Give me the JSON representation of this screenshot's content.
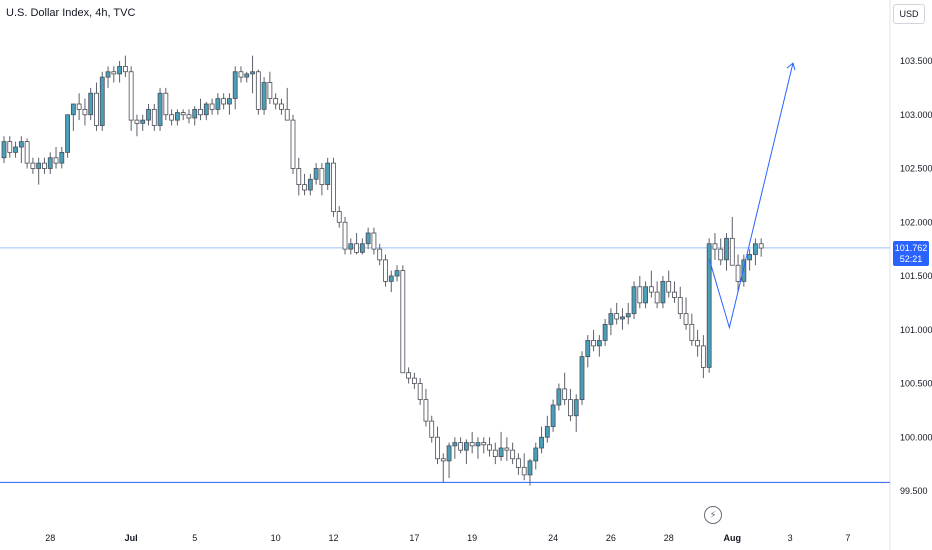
{
  "header": {
    "title": "U.S. Dollar Index, 4h, TVC"
  },
  "currency_button": {
    "label": "USD"
  },
  "price_label": {
    "price": "101.762",
    "countdown": "52:21"
  },
  "colors": {
    "up": "#26a69a",
    "up_fill": "#4a9fb8",
    "down_fill": "#ffffff",
    "wick": "#5d606b",
    "line": "#2962ff",
    "hline": "#9ec1f5"
  },
  "chart_data": {
    "type": "candlestick",
    "title": "U.S. Dollar Index, 4h, TVC",
    "ylim": [
      99.5,
      103.8
    ],
    "y_ticks": [
      "103.500",
      "103.000",
      "102.500",
      "102.000",
      "101.500",
      "101.000",
      "100.500",
      "100.000",
      "99.500"
    ],
    "y_tick_values": [
      103.5,
      103.0,
      102.5,
      102.0,
      101.5,
      101.0,
      100.5,
      100.0,
      99.5
    ],
    "x_ticks": [
      {
        "label": "28",
        "i": 8
      },
      {
        "label": "Jul",
        "i": 22,
        "bold": true
      },
      {
        "label": "5",
        "i": 33
      },
      {
        "label": "10",
        "i": 47
      },
      {
        "label": "12",
        "i": 57
      },
      {
        "label": "17",
        "i": 71
      },
      {
        "label": "19",
        "i": 81
      },
      {
        "label": "24",
        "i": 95
      },
      {
        "label": "26",
        "i": 105
      },
      {
        "label": "28",
        "i": 115
      },
      {
        "label": "Aug",
        "i": 126,
        "bold": true
      },
      {
        "label": "3",
        "i": 136
      },
      {
        "label": "7",
        "i": 146
      }
    ],
    "horizontal_lines": [
      101.762,
      99.58
    ],
    "projection": [
      [
        122,
        101.66
      ],
      [
        125.5,
        101.02
      ],
      [
        136.5,
        103.48
      ]
    ],
    "candles": [
      [
        102.6,
        102.8,
        102.55,
        102.75
      ],
      [
        102.75,
        102.8,
        102.6,
        102.65
      ],
      [
        102.65,
        102.75,
        102.6,
        102.7
      ],
      [
        102.7,
        102.8,
        102.55,
        102.75
      ],
      [
        102.75,
        102.78,
        102.5,
        102.55
      ],
      [
        102.55,
        102.6,
        102.45,
        102.5
      ],
      [
        102.5,
        102.6,
        102.35,
        102.55
      ],
      [
        102.55,
        102.6,
        102.45,
        102.5
      ],
      [
        102.5,
        102.65,
        102.45,
        102.6
      ],
      [
        102.6,
        102.7,
        102.5,
        102.55
      ],
      [
        102.55,
        102.7,
        102.5,
        102.65
      ],
      [
        102.65,
        103.0,
        102.6,
        103.0
      ],
      [
        103.0,
        103.1,
        102.85,
        103.1
      ],
      [
        103.1,
        103.2,
        102.95,
        103.05
      ],
      [
        103.05,
        103.15,
        102.9,
        103.0
      ],
      [
        103.0,
        103.25,
        102.95,
        103.2
      ],
      [
        103.2,
        103.3,
        102.85,
        102.9
      ],
      [
        102.9,
        103.4,
        102.85,
        103.35
      ],
      [
        103.35,
        103.45,
        103.25,
        103.4
      ],
      [
        103.4,
        103.45,
        103.3,
        103.38
      ],
      [
        103.38,
        103.5,
        103.3,
        103.45
      ],
      [
        103.45,
        103.55,
        103.35,
        103.4
      ],
      [
        103.4,
        103.45,
        102.85,
        102.95
      ],
      [
        102.95,
        103.0,
        102.8,
        102.92
      ],
      [
        102.92,
        103.0,
        102.85,
        102.95
      ],
      [
        102.95,
        103.1,
        102.9,
        103.05
      ],
      [
        103.05,
        103.1,
        102.85,
        102.9
      ],
      [
        102.9,
        103.25,
        102.85,
        103.2
      ],
      [
        103.2,
        103.25,
        102.95,
        103.0
      ],
      [
        103.0,
        103.05,
        102.9,
        102.95
      ],
      [
        102.95,
        103.05,
        102.9,
        103.02
      ],
      [
        103.02,
        103.05,
        102.95,
        103.0
      ],
      [
        103.0,
        103.05,
        102.92,
        102.97
      ],
      [
        102.97,
        103.08,
        102.9,
        103.05
      ],
      [
        103.05,
        103.15,
        102.95,
        103.0
      ],
      [
        103.0,
        103.12,
        102.95,
        103.1
      ],
      [
        103.1,
        103.15,
        103.0,
        103.05
      ],
      [
        103.05,
        103.2,
        103.0,
        103.15
      ],
      [
        103.15,
        103.2,
        103.05,
        103.1
      ],
      [
        103.1,
        103.2,
        103.0,
        103.15
      ],
      [
        103.15,
        103.45,
        103.05,
        103.4
      ],
      [
        103.4,
        103.45,
        103.3,
        103.35
      ],
      [
        103.35,
        103.4,
        103.3,
        103.38
      ],
      [
        103.38,
        103.55,
        103.2,
        103.4
      ],
      [
        103.4,
        103.42,
        103.0,
        103.05
      ],
      [
        103.05,
        103.35,
        103.0,
        103.3
      ],
      [
        103.3,
        103.4,
        103.1,
        103.15
      ],
      [
        103.15,
        103.2,
        103.05,
        103.1
      ],
      [
        103.1,
        103.15,
        103.0,
        103.05
      ],
      [
        103.05,
        103.25,
        102.95,
        102.95
      ],
      [
        102.95,
        103.0,
        102.45,
        102.5
      ],
      [
        102.5,
        102.6,
        102.25,
        102.35
      ],
      [
        102.35,
        102.45,
        102.25,
        102.3
      ],
      [
        102.3,
        102.45,
        102.25,
        102.4
      ],
      [
        102.4,
        102.55,
        102.35,
        102.5
      ],
      [
        102.5,
        102.55,
        102.25,
        102.35
      ],
      [
        102.35,
        102.6,
        102.3,
        102.55
      ],
      [
        102.55,
        102.6,
        102.05,
        102.1
      ],
      [
        102.1,
        102.15,
        101.95,
        102.0
      ],
      [
        102.0,
        102.05,
        101.7,
        101.75
      ],
      [
        101.75,
        101.85,
        101.7,
        101.8
      ],
      [
        101.8,
        101.9,
        101.7,
        101.72
      ],
      [
        101.72,
        101.85,
        101.7,
        101.8
      ],
      [
        101.8,
        101.95,
        101.75,
        101.9
      ],
      [
        101.9,
        101.95,
        101.7,
        101.75
      ],
      [
        101.75,
        101.8,
        101.6,
        101.65
      ],
      [
        101.65,
        101.7,
        101.4,
        101.45
      ],
      [
        101.45,
        101.55,
        101.35,
        101.5
      ],
      [
        101.5,
        101.6,
        101.45,
        101.55
      ],
      [
        101.55,
        101.6,
        100.6,
        100.6
      ],
      [
        100.6,
        100.65,
        100.5,
        100.55
      ],
      [
        100.55,
        100.6,
        100.45,
        100.5
      ],
      [
        100.5,
        100.55,
        100.3,
        100.35
      ],
      [
        100.35,
        100.45,
        100.1,
        100.15
      ],
      [
        100.15,
        100.2,
        99.95,
        100.0
      ],
      [
        100.0,
        100.1,
        99.75,
        99.8
      ],
      [
        99.8,
        99.85,
        99.58,
        99.78
      ],
      [
        99.78,
        99.95,
        99.62,
        99.92
      ],
      [
        99.92,
        100.0,
        99.8,
        99.95
      ],
      [
        99.95,
        100.0,
        99.85,
        99.88
      ],
      [
        99.88,
        99.98,
        99.75,
        99.95
      ],
      [
        99.95,
        100.05,
        99.85,
        99.92
      ],
      [
        99.92,
        100.0,
        99.8,
        99.95
      ],
      [
        99.95,
        100.0,
        99.85,
        99.93
      ],
      [
        99.93,
        100.0,
        99.82,
        99.88
      ],
      [
        99.88,
        99.95,
        99.75,
        99.82
      ],
      [
        99.82,
        100.05,
        99.78,
        99.9
      ],
      [
        99.9,
        100.0,
        99.78,
        99.88
      ],
      [
        99.88,
        99.95,
        99.75,
        99.8
      ],
      [
        99.8,
        99.85,
        99.65,
        99.72
      ],
      [
        99.72,
        99.85,
        99.6,
        99.65
      ],
      [
        99.65,
        99.8,
        99.55,
        99.78
      ],
      [
        99.78,
        99.95,
        99.7,
        99.9
      ],
      [
        99.9,
        100.1,
        99.85,
        100.0
      ],
      [
        100.0,
        100.2,
        99.95,
        100.1
      ],
      [
        100.1,
        100.35,
        100.05,
        100.3
      ],
      [
        100.3,
        100.5,
        100.25,
        100.45
      ],
      [
        100.45,
        100.6,
        100.3,
        100.35
      ],
      [
        100.35,
        100.45,
        100.15,
        100.2
      ],
      [
        100.2,
        100.4,
        100.05,
        100.35
      ],
      [
        100.35,
        100.8,
        100.3,
        100.75
      ],
      [
        100.75,
        100.95,
        100.65,
        100.9
      ],
      [
        100.9,
        101.0,
        100.8,
        100.85
      ],
      [
        100.85,
        100.95,
        100.75,
        100.9
      ],
      [
        100.9,
        101.1,
        100.85,
        101.05
      ],
      [
        101.05,
        101.2,
        100.95,
        101.15
      ],
      [
        101.15,
        101.25,
        101.05,
        101.1
      ],
      [
        101.1,
        101.2,
        101.0,
        101.12
      ],
      [
        101.12,
        101.25,
        101.05,
        101.15
      ],
      [
        101.15,
        101.45,
        101.1,
        101.4
      ],
      [
        101.4,
        101.5,
        101.2,
        101.25
      ],
      [
        101.25,
        101.45,
        101.2,
        101.4
      ],
      [
        101.4,
        101.55,
        101.3,
        101.35
      ],
      [
        101.35,
        101.45,
        101.2,
        101.25
      ],
      [
        101.25,
        101.5,
        101.2,
        101.45
      ],
      [
        101.45,
        101.55,
        101.3,
        101.35
      ],
      [
        101.35,
        101.45,
        101.25,
        101.3
      ],
      [
        101.3,
        101.4,
        101.1,
        101.15
      ],
      [
        101.15,
        101.3,
        101.0,
        101.05
      ],
      [
        101.05,
        101.15,
        100.85,
        100.9
      ],
      [
        100.9,
        101.0,
        100.75,
        100.85
      ],
      [
        100.85,
        100.95,
        100.55,
        100.65
      ],
      [
        100.65,
        101.85,
        100.6,
        101.8
      ],
      [
        101.8,
        101.9,
        101.65,
        101.75
      ],
      [
        101.75,
        101.85,
        101.6,
        101.65
      ],
      [
        101.65,
        101.9,
        101.55,
        101.85
      ],
      [
        101.85,
        102.05,
        101.6,
        101.6
      ],
      [
        101.6,
        101.7,
        101.35,
        101.45
      ],
      [
        101.45,
        101.7,
        101.4,
        101.65
      ],
      [
        101.65,
        101.75,
        101.55,
        101.7
      ],
      [
        101.7,
        101.85,
        101.6,
        101.8
      ],
      [
        101.8,
        101.85,
        101.68,
        101.76
      ]
    ]
  }
}
